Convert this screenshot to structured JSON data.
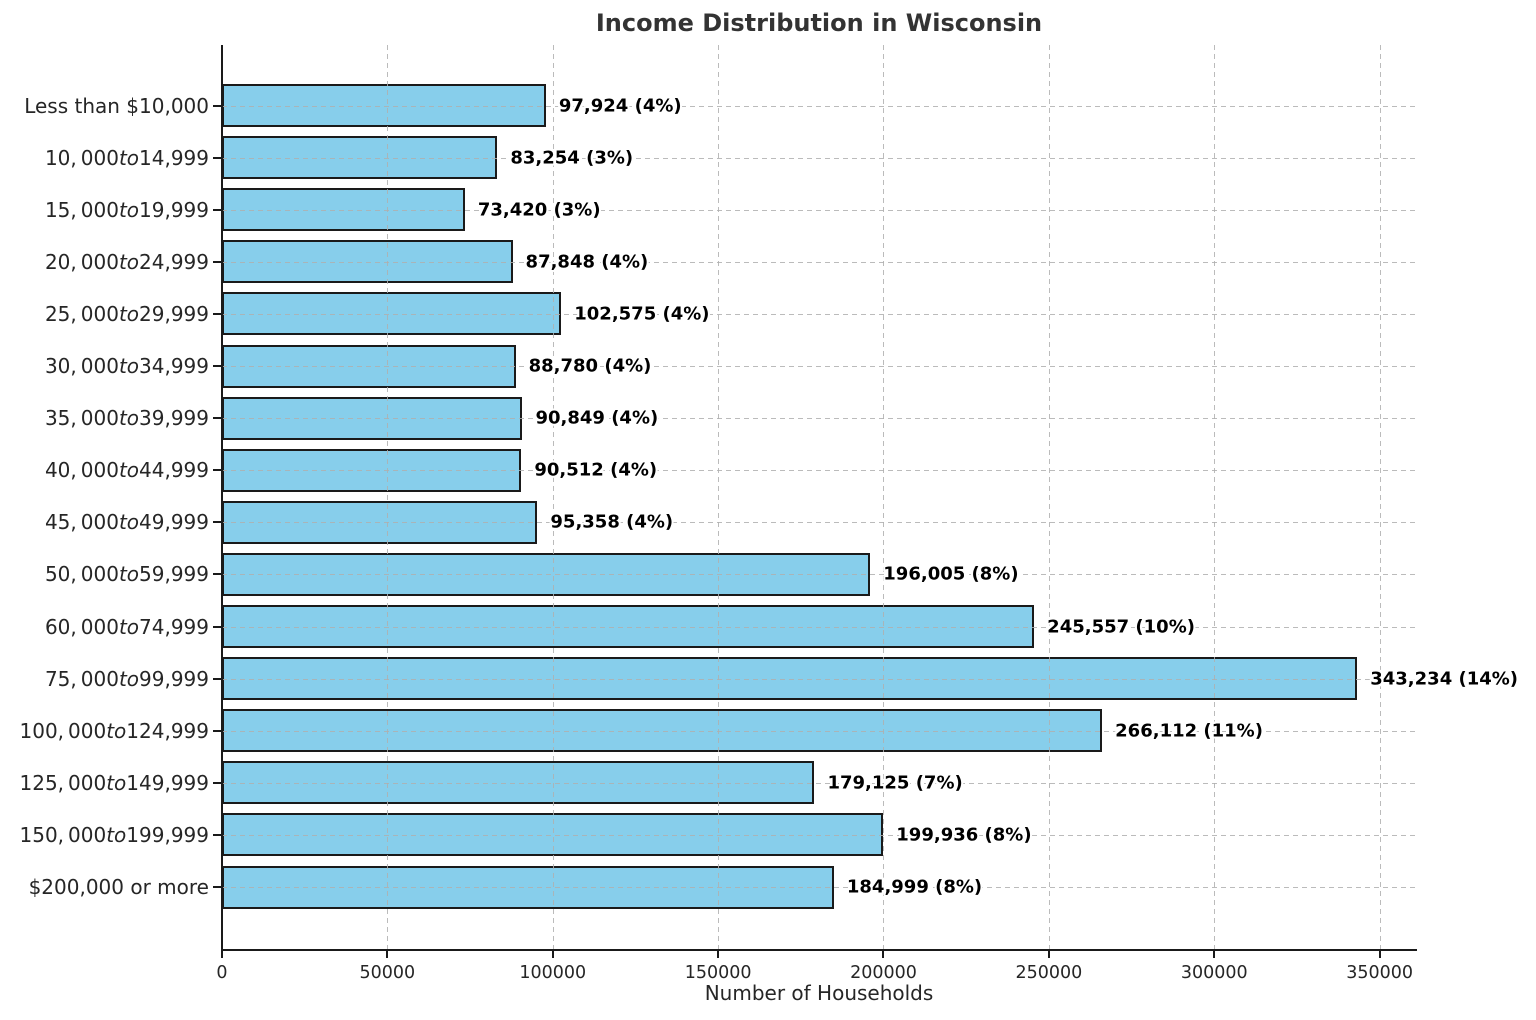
{
  "chart_data": {
    "type": "bar",
    "orientation": "horizontal",
    "title": "Income Distribution in Wisconsin",
    "xlabel": "Number of Households",
    "ylabel": "",
    "xlim": [
      0,
      361000
    ],
    "xticks": [
      0,
      50000,
      100000,
      150000,
      200000,
      250000,
      300000,
      350000
    ],
    "grid": "dashed",
    "legend": "none",
    "bar_color": "#87CEEB",
    "bar_edge_color": "#1a1a1a",
    "categories": [
      {
        "pre": "Less than $10,000",
        "italic": "",
        "post": ""
      },
      {
        "pre": "10, 000",
        "italic": "to",
        "post": "14,999"
      },
      {
        "pre": "15, 000",
        "italic": "to",
        "post": "19,999"
      },
      {
        "pre": "20, 000",
        "italic": "to",
        "post": "24,999"
      },
      {
        "pre": "25, 000",
        "italic": "to",
        "post": "29,999"
      },
      {
        "pre": "30, 000",
        "italic": "to",
        "post": "34,999"
      },
      {
        "pre": "35, 000",
        "italic": "to",
        "post": "39,999"
      },
      {
        "pre": "40, 000",
        "italic": "to",
        "post": "44,999"
      },
      {
        "pre": "45, 000",
        "italic": "to",
        "post": "49,999"
      },
      {
        "pre": "50, 000",
        "italic": "to",
        "post": "59,999"
      },
      {
        "pre": "60, 000",
        "italic": "to",
        "post": "74,999"
      },
      {
        "pre": "75, 000",
        "italic": "to",
        "post": "99,999"
      },
      {
        "pre": "100, 000",
        "italic": "to",
        "post": "124,999"
      },
      {
        "pre": "125, 000",
        "italic": "to",
        "post": "149,999"
      },
      {
        "pre": "150, 000",
        "italic": "to",
        "post": "199,999"
      },
      {
        "pre": "$200,000 or more",
        "italic": "",
        "post": ""
      }
    ],
    "values": [
      97924,
      83254,
      73420,
      87848,
      102575,
      88780,
      90849,
      90512,
      95358,
      196005,
      245557,
      343234,
      266112,
      179125,
      199936,
      184999
    ],
    "value_labels": [
      "97,924 (4%)",
      "83,254 (3%)",
      "73,420 (3%)",
      "87,848 (4%)",
      "102,575 (4%)",
      "88,780 (4%)",
      "90,849 (4%)",
      "90,512 (4%)",
      "95,358 (4%)",
      "196,005 (8%)",
      "245,557 (10%)",
      "343,234 (14%)",
      "266,112 (11%)",
      "179,125 (7%)",
      "199,936 (8%)",
      "184,999 (8%)"
    ]
  }
}
